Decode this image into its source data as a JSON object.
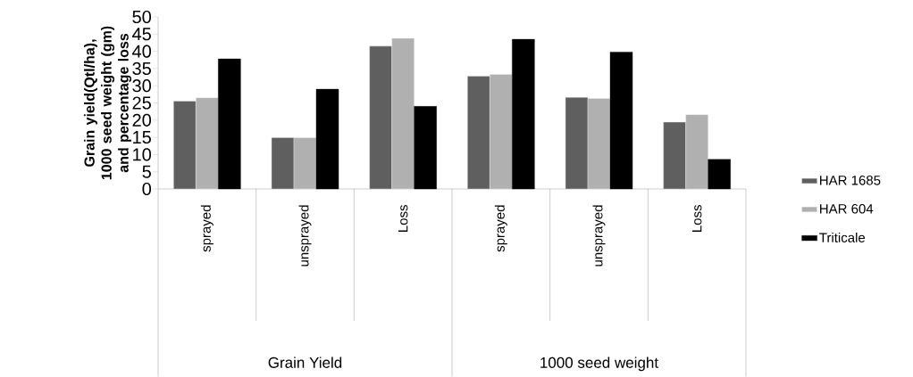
{
  "chart_data": {
    "type": "bar",
    "ylabel": "Grain yield(Qtl/ha), 1000 seed weight (gm) and percentage loss",
    "categories": [
      "sprayed",
      "unsprayed",
      "Loss",
      "sprayed",
      "unsprayed",
      "Loss"
    ],
    "annotations": [
      "Grain Yield",
      "1000 seed weight"
    ],
    "series": [
      {
        "name": "HAR 1685",
        "color": "#5f5f5f",
        "values": [
          25.5,
          14.9,
          41.5,
          32.8,
          26.6,
          19.4
        ]
      },
      {
        "name": "HAR 604",
        "color": "#b0b0b0",
        "values": [
          26.5,
          14.9,
          43.8,
          33.3,
          26.3,
          21.6
        ]
      },
      {
        "name": "Triticale",
        "color": "#000000",
        "values": [
          37.8,
          29.0,
          24.0,
          43.5,
          39.8,
          8.6
        ]
      }
    ],
    "ylim": [
      0,
      50
    ],
    "yticks": [
      0,
      5,
      10,
      15,
      20,
      25,
      30,
      35,
      40,
      45,
      50
    ],
    "legend": "right"
  }
}
